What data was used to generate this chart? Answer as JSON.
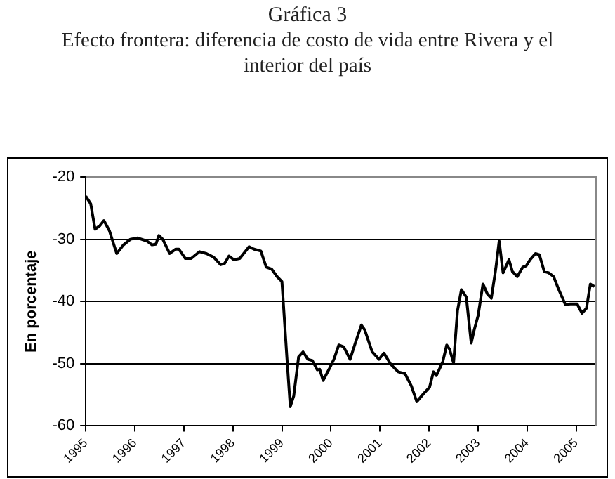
{
  "chart_data": {
    "type": "line",
    "title": "Gráfica 3",
    "subtitle": "Efecto frontera: diferencia de costo de vida entre Rivera y el interior del país",
    "ylabel": "En porcentaje",
    "x": [
      1995.0,
      1995.1,
      1995.19,
      1995.29,
      1995.37,
      1995.48,
      1995.63,
      1995.77,
      1995.91,
      1996.06,
      1996.25,
      1996.35,
      1996.43,
      1996.49,
      1996.57,
      1996.71,
      1996.83,
      1996.9,
      1997.03,
      1997.15,
      1997.32,
      1997.46,
      1997.61,
      1997.75,
      1997.83,
      1997.92,
      1998.02,
      1998.14,
      1998.33,
      1998.43,
      1998.57,
      1998.68,
      1998.79,
      1998.9,
      1999.0,
      1999.1,
      1999.17,
      1999.24,
      1999.34,
      1999.43,
      1999.53,
      1999.62,
      1999.72,
      1999.77,
      1999.84,
      1999.96,
      2000.06,
      2000.16,
      2000.26,
      2000.39,
      2000.5,
      2000.62,
      2000.69,
      2000.84,
      2000.98,
      2001.08,
      2001.22,
      2001.37,
      2001.51,
      2001.64,
      2001.75,
      2001.89,
      2002.01,
      2002.09,
      2002.15,
      2002.28,
      2002.36,
      2002.42,
      2002.5,
      2002.58,
      2002.66,
      2002.76,
      2002.86,
      2002.92,
      2003.0,
      2003.1,
      2003.19,
      2003.27,
      2003.36,
      2003.43,
      2003.51,
      2003.63,
      2003.7,
      2003.8,
      2003.91,
      2003.98,
      2004.06,
      2004.17,
      2004.25,
      2004.35,
      2004.44,
      2004.54,
      2004.64,
      2004.78,
      2004.88,
      2005.02,
      2005.12,
      2005.21,
      2005.29,
      2005.37
    ],
    "series": [
      {
        "color": "#000000",
        "values": [
          -23.1,
          -24.3,
          -28.4,
          -27.8,
          -27.0,
          -28.6,
          -32.3,
          -30.9,
          -30.0,
          -29.8,
          -30.3,
          -30.9,
          -30.8,
          -29.4,
          -30.0,
          -32.3,
          -31.6,
          -31.6,
          -33.1,
          -33.1,
          -32.0,
          -32.3,
          -32.9,
          -34.1,
          -33.9,
          -32.7,
          -33.3,
          -33.1,
          -31.2,
          -31.6,
          -31.9,
          -34.5,
          -34.8,
          -36.0,
          -36.8,
          -48.9,
          -56.9,
          -55.2,
          -48.9,
          -48.1,
          -49.3,
          -49.5,
          -51.0,
          -50.9,
          -52.7,
          -50.9,
          -49.3,
          -47.0,
          -47.3,
          -49.3,
          -46.6,
          -43.8,
          -44.6,
          -48.1,
          -49.3,
          -48.3,
          -50.1,
          -51.3,
          -51.6,
          -53.6,
          -56.1,
          -54.8,
          -53.8,
          -51.3,
          -51.9,
          -49.7,
          -47.0,
          -47.7,
          -49.9,
          -41.5,
          -38.1,
          -39.3,
          -46.7,
          -44.6,
          -42.3,
          -37.2,
          -38.8,
          -39.5,
          -34.8,
          -30.3,
          -35.4,
          -33.3,
          -35.2,
          -36.0,
          -34.5,
          -34.3,
          -33.3,
          -32.3,
          -32.5,
          -35.2,
          -35.4,
          -36.0,
          -38.0,
          -40.5,
          -40.4,
          -40.4,
          -41.9,
          -41.1,
          -37.2,
          -37.6
        ]
      }
    ],
    "xlim": [
      1995,
      2005.42
    ],
    "xticks": [
      1995,
      1996,
      1997,
      1998,
      1999,
      2000,
      2001,
      2002,
      2003,
      2004,
      2005
    ],
    "ylim": [
      -60,
      -20
    ],
    "yticks": [
      -60,
      -50,
      -40,
      -30,
      -20
    ],
    "grid": "y",
    "legend": false,
    "marker": "none",
    "line_style": "solid"
  }
}
